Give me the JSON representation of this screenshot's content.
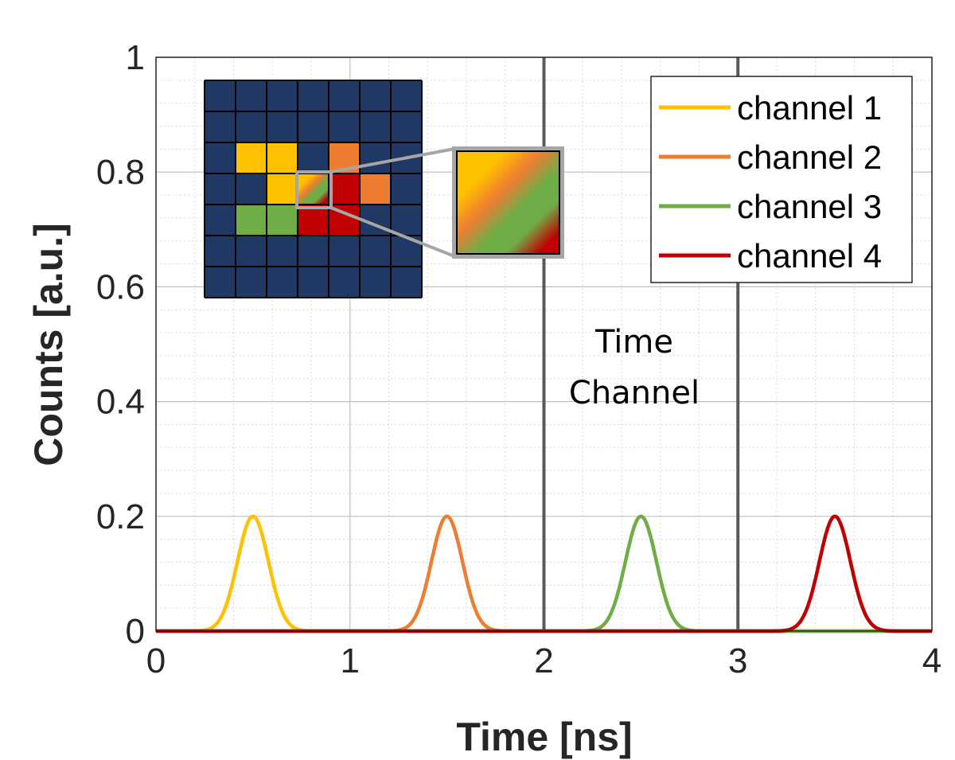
{
  "chart_data": {
    "type": "line",
    "xlabel": "Time [ns]",
    "ylabel": "Counts [a.u.]",
    "xlim": [
      0,
      4
    ],
    "ylim": [
      0,
      1
    ],
    "x_ticks": [
      "0",
      "1",
      "2",
      "3",
      "4"
    ],
    "y_ticks": [
      "0",
      "0.2",
      "0.4",
      "0.6",
      "0.8",
      "1"
    ],
    "grid": "on with minor grid",
    "legend_position": "top-right",
    "series": [
      {
        "name": "channel 1",
        "color": "#FFC000",
        "peak_x": 0.5,
        "peak_y": 0.2,
        "sigma": 0.08
      },
      {
        "name": "channel 2",
        "color": "#ED7D31",
        "peak_x": 1.5,
        "peak_y": 0.2,
        "sigma": 0.08
      },
      {
        "name": "channel 3",
        "color": "#70AD47",
        "peak_x": 2.5,
        "peak_y": 0.2,
        "sigma": 0.08
      },
      {
        "name": "channel 4",
        "color": "#C00000",
        "peak_x": 3.5,
        "peak_y": 0.2,
        "sigma": 0.08
      }
    ],
    "vertical_lines": [
      2,
      3
    ],
    "annotation": {
      "line1": "Time",
      "line2": "Channel"
    },
    "inset": {
      "grid_size": 7,
      "background_color": "#1F3864",
      "cells": [
        {
          "row": 2,
          "col": 1,
          "color": "#FFC000"
        },
        {
          "row": 2,
          "col": 2,
          "color": "#FFC000"
        },
        {
          "row": 2,
          "col": 4,
          "color": "#ED7D31"
        },
        {
          "row": 3,
          "col": 2,
          "color": "#FFC000"
        },
        {
          "row": 3,
          "col": 3,
          "color": "mixed"
        },
        {
          "row": 3,
          "col": 4,
          "color": "#C00000"
        },
        {
          "row": 3,
          "col": 5,
          "color": "#ED7D31"
        },
        {
          "row": 4,
          "col": 1,
          "color": "#70AD47"
        },
        {
          "row": 4,
          "col": 2,
          "color": "#70AD47"
        },
        {
          "row": 4,
          "col": 3,
          "color": "#C00000"
        },
        {
          "row": 4,
          "col": 4,
          "color": "#C00000"
        }
      ]
    }
  }
}
